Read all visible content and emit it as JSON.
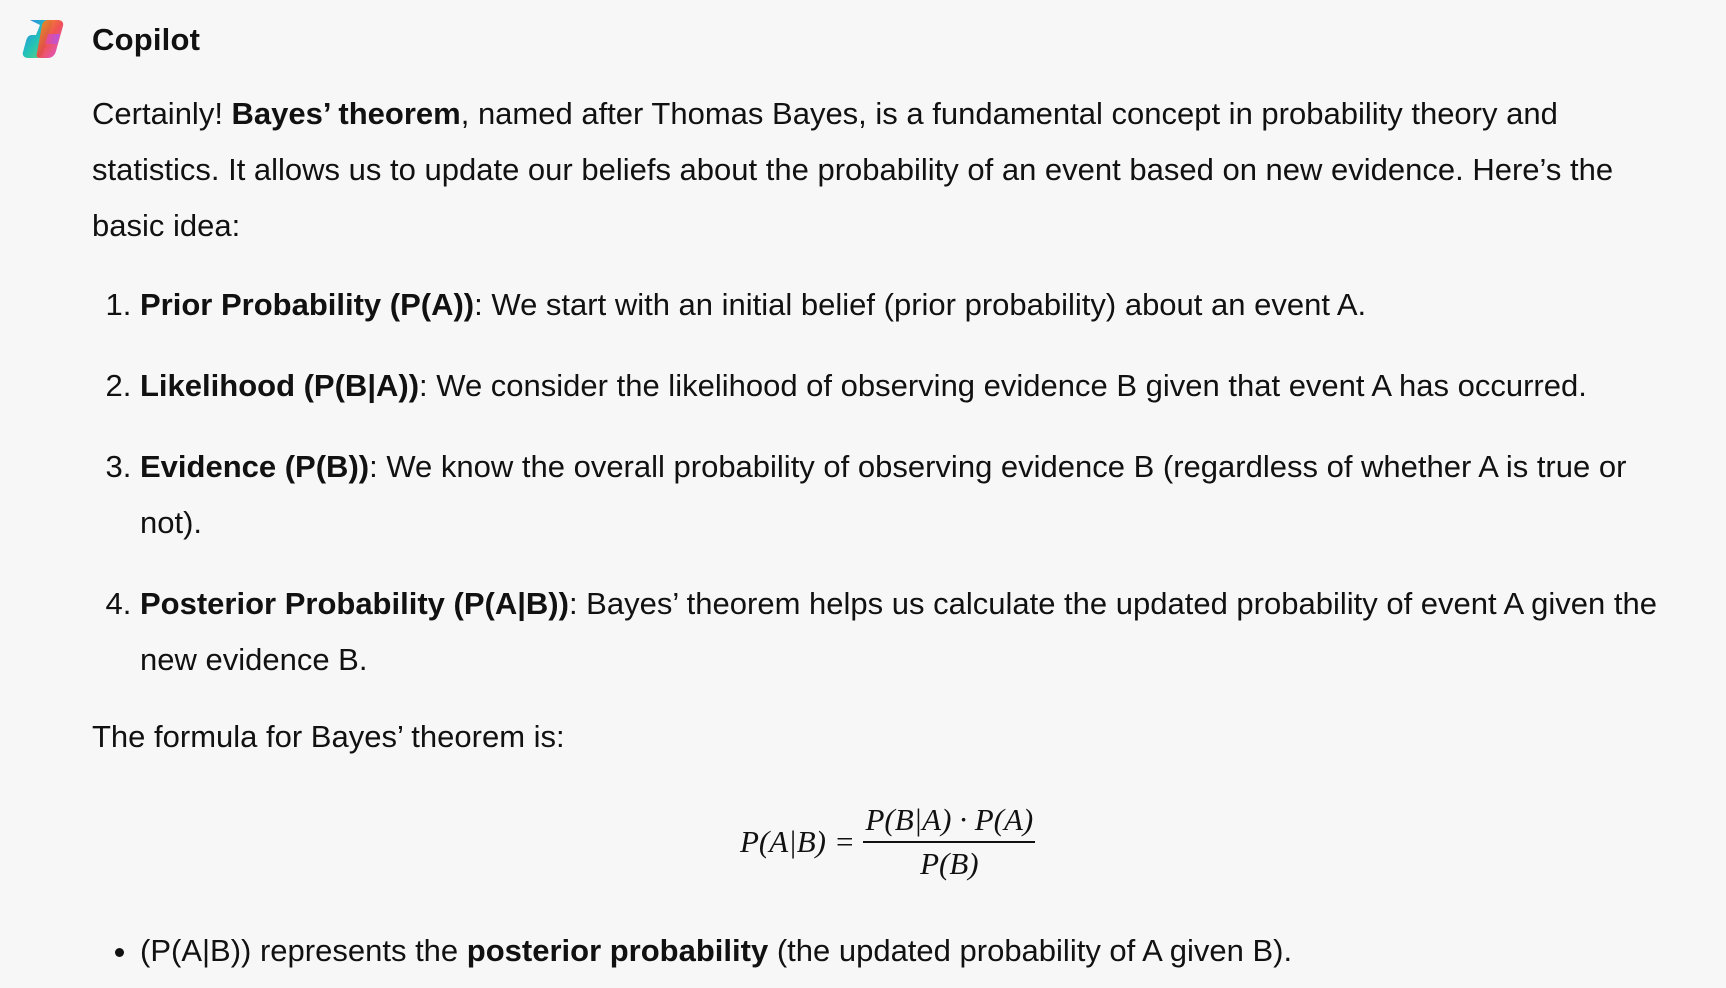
{
  "header": {
    "app_name": "Copilot",
    "logo_icon": "copilot-logo-icon",
    "logo_colors": [
      "#3b82f6",
      "#22c3b6",
      "#f59e0b",
      "#ef4444",
      "#a855f7",
      "#ec4899"
    ]
  },
  "intro": {
    "pre": "Certainly! ",
    "bold": "Bayes’ theorem",
    "post": ", named after Thomas Bayes, is a fundamental concept in probability theory and statistics. It allows us to update our beliefs about the probability of an event based on new evidence. Here’s the basic idea:"
  },
  "steps": [
    {
      "term": "Prior Probability (P(A))",
      "text": ": We start with an initial belief (prior probability) about an event A."
    },
    {
      "term": "Likelihood (P(B|A))",
      "text": ": We consider the likelihood of observing evidence B given that event A has occurred."
    },
    {
      "term": "Evidence (P(B))",
      "text": ": We know the overall probability of observing evidence B (regardless of whether A is true or not)."
    },
    {
      "term": "Posterior Probability (P(A|B))",
      "text": ": Bayes’ theorem helps us calculate the updated probability of event A given the new evidence B."
    }
  ],
  "formula_intro": "The formula for Bayes’ theorem is:",
  "formula": {
    "lhs": "P(A|B)",
    "equals": "=",
    "numerator": "P(B|A) · P(A)",
    "denominator": "P(B)"
  },
  "bullets": [
    {
      "pre": "(P(A|B)) represents the ",
      "bold": "posterior probability",
      "post": " (the updated probability of A given B)."
    }
  ]
}
